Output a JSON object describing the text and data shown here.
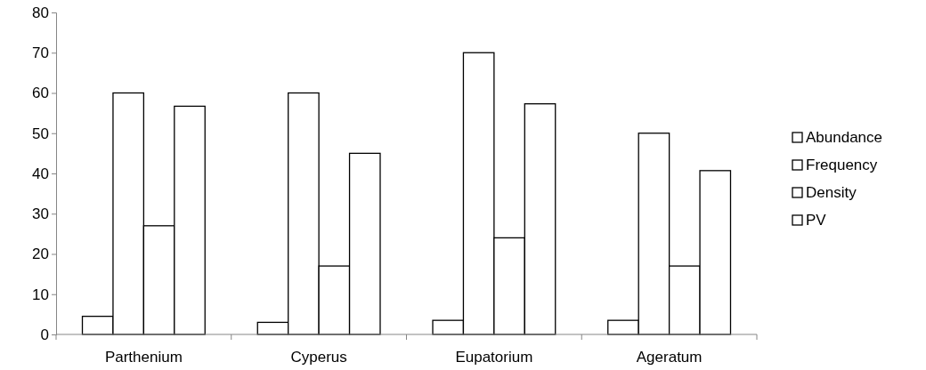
{
  "chart_data": {
    "type": "bar",
    "categories": [
      "Parthenium",
      "Cyperus",
      "Eupatorium",
      "Ageratum"
    ],
    "series": [
      {
        "name": "Abundance",
        "color": "#ffffff",
        "values": [
          4.5,
          3,
          3.5,
          3.5
        ]
      },
      {
        "name": "Frequency",
        "color": "#ffffff",
        "values": [
          60,
          60,
          70,
          50
        ]
      },
      {
        "name": "Density",
        "color": "#ffffff",
        "values": [
          27,
          17,
          24,
          17
        ]
      },
      {
        "name": "PV",
        "color": "#ffffff",
        "values": [
          56.7,
          45,
          57.3,
          40.7
        ]
      }
    ],
    "ylim": [
      0,
      80
    ],
    "yticks": [
      0,
      10,
      20,
      30,
      40,
      50,
      60,
      70,
      80
    ],
    "grid": false,
    "legend": "right"
  }
}
